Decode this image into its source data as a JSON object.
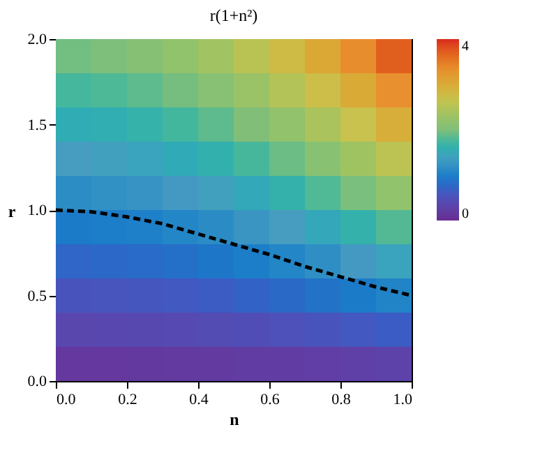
{
  "chart_data": {
    "type": "heatmap",
    "title": "r(1+n²)",
    "xlabel": "n",
    "ylabel": "r",
    "xlim": [
      0,
      1
    ],
    "ylim": [
      0,
      2
    ],
    "xticks": [
      {
        "value": 0,
        "label": "0.0"
      },
      0.2,
      0.4,
      0.6,
      0.8,
      {
        "value": 1,
        "label": "1.0"
      }
    ],
    "yticks": [
      {
        "value": 0,
        "label": "0.0"
      },
      0.5,
      {
        "value": 1,
        "label": "1.0"
      },
      1.5,
      {
        "value": 2,
        "label": "2.0"
      }
    ],
    "cells": [
      [
        1.95,
        1.99,
        2.07,
        2.19,
        2.34,
        2.54,
        2.77,
        3.05,
        3.36,
        3.71
      ],
      [
        1.75,
        1.79,
        1.86,
        1.96,
        2.1,
        2.28,
        2.49,
        2.73,
        3.01,
        3.33
      ],
      [
        1.55,
        1.58,
        1.65,
        1.74,
        1.86,
        2.02,
        2.2,
        2.42,
        2.67,
        2.95
      ],
      [
        1.35,
        1.38,
        1.43,
        1.52,
        1.62,
        1.76,
        1.92,
        2.11,
        2.33,
        2.57
      ],
      [
        1.15,
        1.18,
        1.22,
        1.29,
        1.38,
        1.5,
        1.64,
        1.8,
        1.98,
        2.19
      ],
      [
        0.95,
        0.97,
        1.01,
        1.07,
        1.14,
        1.24,
        1.35,
        1.48,
        1.64,
        1.81
      ],
      [
        0.75,
        0.77,
        0.8,
        0.84,
        0.9,
        0.98,
        1.07,
        1.17,
        1.29,
        1.43
      ],
      [
        0.55,
        0.56,
        0.58,
        0.62,
        0.66,
        0.72,
        0.78,
        0.86,
        0.95,
        1.05
      ],
      [
        0.35,
        0.36,
        0.37,
        0.39,
        0.42,
        0.46,
        0.5,
        0.55,
        0.6,
        0.67
      ],
      [
        0.15,
        0.15,
        0.16,
        0.17,
        0.18,
        0.2,
        0.21,
        0.23,
        0.26,
        0.29
      ]
    ],
    "clim": [
      0,
      4
    ],
    "cticks": [
      0,
      4
    ],
    "colors": [
      "#6a2c91",
      "#3b5cc4",
      "#4a9cc0",
      "#7fbf7a",
      "#c9c24e",
      "#e8902f",
      "#d92a1e"
    ],
    "series": [
      {
        "type": "line",
        "x": [
          0,
          0.1,
          0.2,
          0.3,
          0.4,
          0.5,
          0.6,
          0.7,
          0.8,
          0.9,
          1.0
        ],
        "values": [
          1.0,
          0.99,
          0.96,
          0.92,
          0.86,
          0.8,
          0.74,
          0.67,
          0.61,
          0.55,
          0.5
        ],
        "color": "#000000",
        "line_style": "dashed"
      }
    ],
    "grid": false
  }
}
